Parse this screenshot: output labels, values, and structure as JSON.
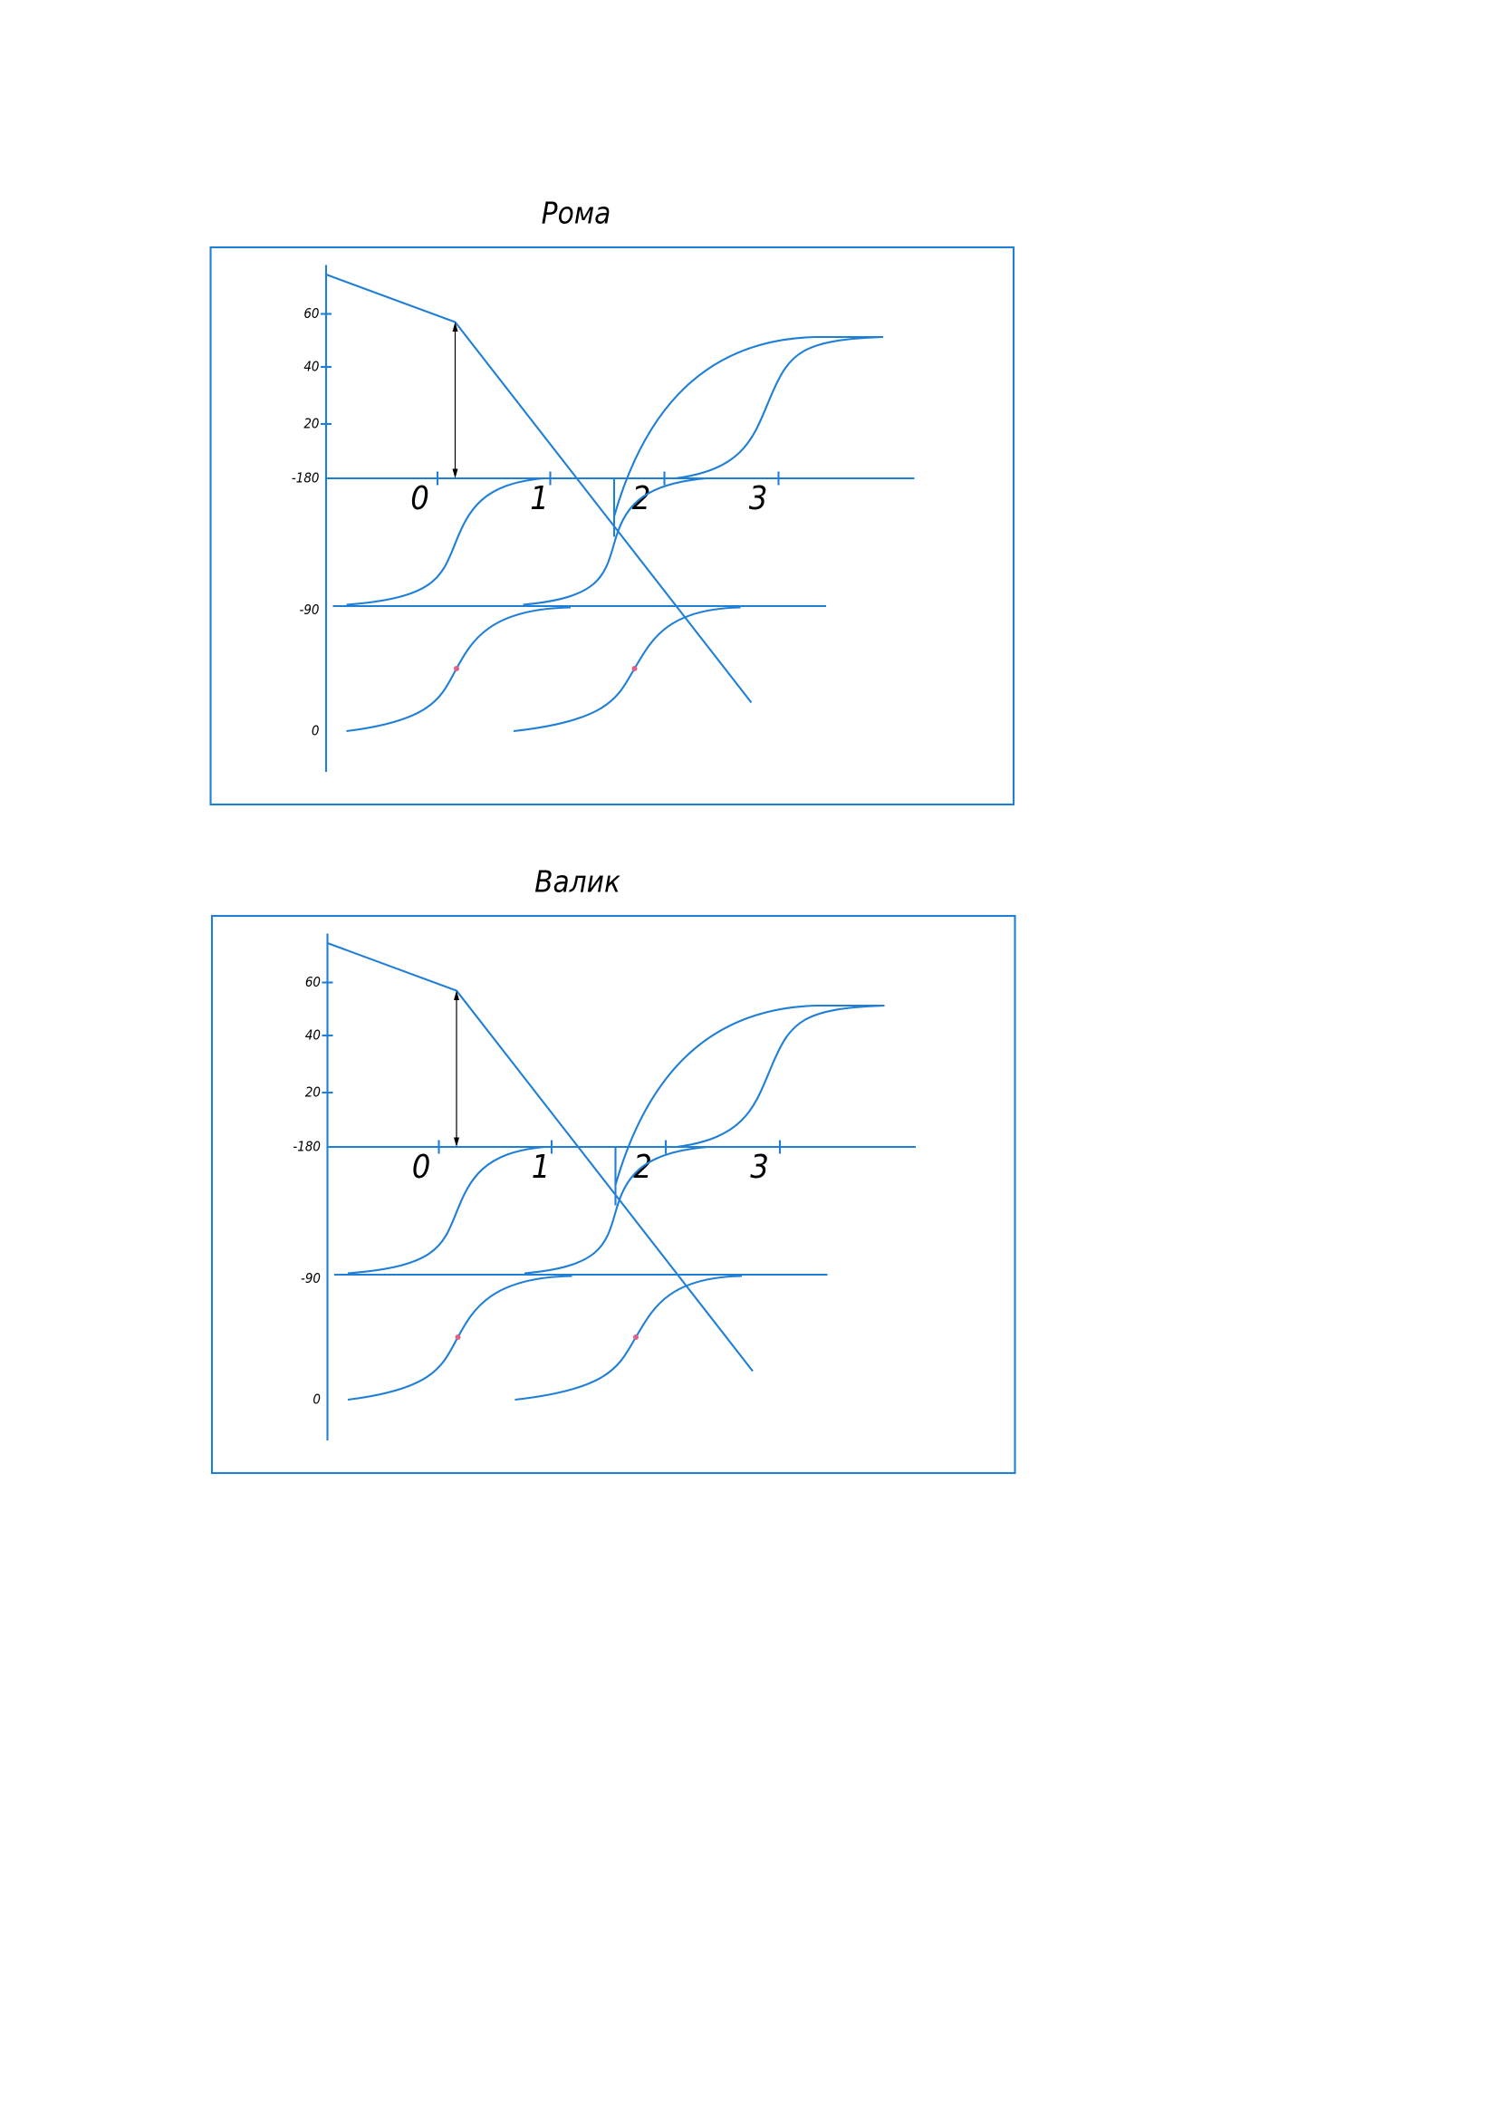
{
  "panels": [
    {
      "title": "Рома",
      "y_labels": [
        "60",
        "40",
        "20",
        "-180",
        "-90",
        "0"
      ],
      "x_labels": [
        "0",
        "1",
        "2",
        "3"
      ]
    },
    {
      "title": "Валик",
      "y_labels": [
        "60",
        "40",
        "20",
        "-180",
        "-90",
        "0"
      ],
      "x_labels": [
        "0",
        "1",
        "2",
        "3"
      ]
    }
  ]
}
